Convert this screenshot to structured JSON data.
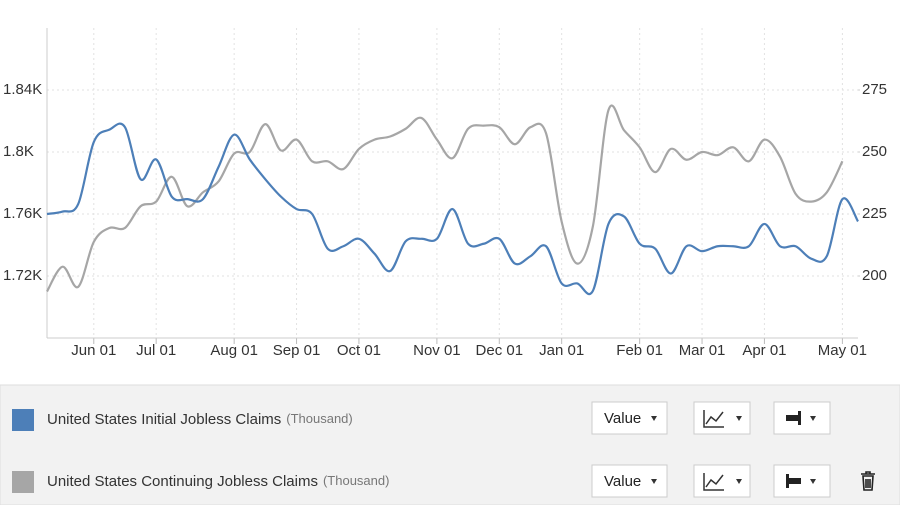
{
  "chart_data": {
    "type": "line",
    "categories": [
      null,
      null,
      null,
      "Jun 01",
      null,
      null,
      null,
      "Jul 01",
      null,
      null,
      null,
      null,
      "Aug 01",
      null,
      null,
      null,
      "Sep 01",
      null,
      null,
      null,
      "Oct 01",
      null,
      null,
      null,
      null,
      "Nov 01",
      null,
      null,
      null,
      "Dec 01",
      null,
      null,
      null,
      "Jan 01",
      null,
      null,
      null,
      null,
      "Feb 01",
      null,
      null,
      null,
      "Mar 01",
      null,
      null,
      null,
      "Apr 01",
      null,
      null,
      null,
      null,
      "May 01",
      null
    ],
    "series": [
      {
        "name": "United States Initial Jobless Claims",
        "unit": "(Thousand)",
        "color": "#4d7fb8",
        "axis": "y2",
        "values": [
          225,
          226,
          229,
          254,
          259,
          260,
          239,
          247,
          232,
          231,
          231,
          244,
          257,
          247,
          239,
          232,
          227,
          225,
          211,
          212,
          215,
          209,
          202,
          214,
          215,
          215,
          227,
          213,
          213,
          215,
          205,
          208,
          212,
          197,
          197,
          194,
          221,
          224,
          213,
          211,
          201,
          212,
          210,
          212,
          212,
          212,
          221,
          212,
          212,
          207,
          208,
          231,
          222
        ]
      },
      {
        "name": "United States Continuing Jobless Claims",
        "unit": "(Thousand)",
        "color": "#a6a6a6",
        "axis": "y",
        "values": [
          1710,
          1726,
          1713,
          1742,
          1751,
          1751,
          1765,
          1768,
          1784,
          1765,
          1774,
          1781,
          1799,
          1800,
          1818,
          1801,
          1808,
          1794,
          1794,
          1789,
          1802,
          1808,
          1810,
          1815,
          1822,
          1808,
          1796,
          1815,
          1817,
          1816,
          1805,
          1816,
          1812,
          1755,
          1728,
          1752,
          1827,
          1814,
          1803,
          1787,
          1802,
          1795,
          1800,
          1798,
          1803,
          1794,
          1808,
          1797,
          1773,
          1768,
          1774,
          1794,
          null
        ]
      }
    ],
    "ylim": [
      1680,
      1880
    ],
    "yticks": [
      {
        "value": 1720,
        "label": "1.72K"
      },
      {
        "value": 1760,
        "label": "1.76K"
      },
      {
        "value": 1800,
        "label": "1.8K"
      },
      {
        "value": 1840,
        "label": "1.84K"
      }
    ],
    "y2lim": [
      175,
      300
    ],
    "y2ticks": [
      200,
      225,
      250,
      275
    ],
    "grid": true,
    "button_label": "Value"
  }
}
